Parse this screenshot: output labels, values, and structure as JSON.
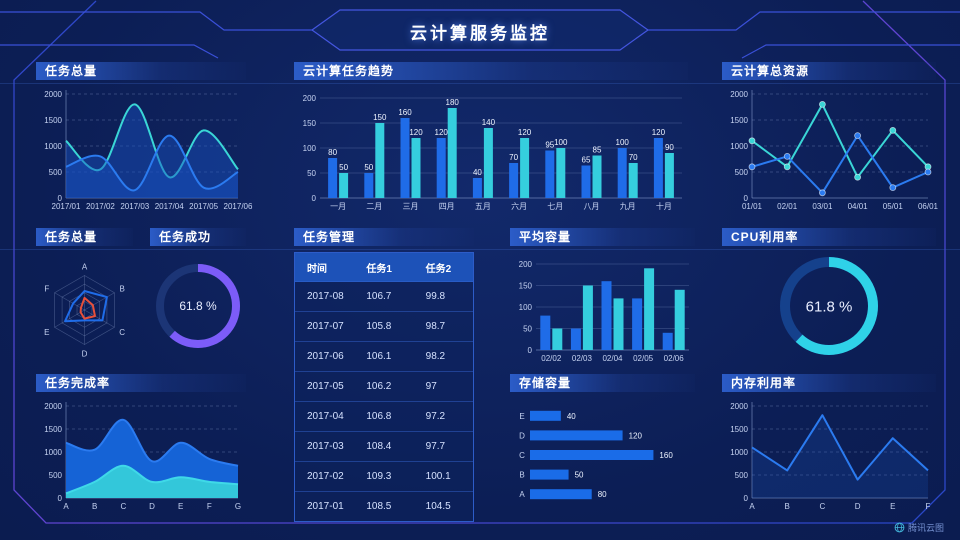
{
  "header": {
    "title": "云计算服务监控"
  },
  "watermark": {
    "label": "腾讯云图",
    "icon": "globe-icon"
  },
  "colors": {
    "blue": "#1f6ce8",
    "cyan": "#35cede",
    "purple": "#7c5cf8",
    "red": "#e8503a",
    "background": "#0c1e55"
  },
  "panels": {
    "task_total": {
      "title": "任务总量"
    },
    "task_trend": {
      "title": "云计算任务趋势"
    },
    "cloud_resources": {
      "title": "云计算总资源"
    },
    "task_radar": {
      "title": "任务总量"
    },
    "task_success": {
      "title": "任务成功"
    },
    "task_table": {
      "title": "任务管理",
      "headers": [
        "时间",
        "任务1",
        "任务2"
      ],
      "rows": [
        [
          "2017-08",
          "106.7",
          "99.8"
        ],
        [
          "2017-07",
          "105.8",
          "98.7"
        ],
        [
          "2017-06",
          "106.1",
          "98.2"
        ],
        [
          "2017-05",
          "106.2",
          "97"
        ],
        [
          "2017-04",
          "106.8",
          "97.2"
        ],
        [
          "2017-03",
          "108.4",
          "97.7"
        ],
        [
          "2017-02",
          "109.3",
          "100.1"
        ],
        [
          "2017-01",
          "108.5",
          "104.5"
        ]
      ]
    },
    "avg_capacity": {
      "title": "平均容量"
    },
    "cpu": {
      "title": "CPU利用率"
    },
    "completion": {
      "title": "任务完成率"
    },
    "storage": {
      "title": "存储容量"
    },
    "memory": {
      "title": "内存利用率"
    }
  },
  "chart_data": [
    {
      "panel": "chart-task-total",
      "type": "area",
      "title": "任务总量",
      "x": [
        "2017/01",
        "2017/02",
        "2017/03",
        "2017/04",
        "2017/05",
        "2017/06"
      ],
      "ylim": [
        0,
        2000
      ],
      "yticks": [
        0,
        500,
        1000,
        1500,
        2000
      ],
      "grid": "dashed",
      "markers": false,
      "series": [
        {
          "name": "series-cyan",
          "color": "#3ad6d6",
          "smooth": true,
          "area": "rgba(24,82,196,0.45)",
          "values": [
            1100,
            550,
            1800,
            400,
            1300,
            550
          ]
        },
        {
          "name": "series-blue",
          "color": "#2b7bf0",
          "smooth": true,
          "area": "rgba(24,82,196,0.45)",
          "values": [
            600,
            800,
            150,
            1200,
            200,
            500
          ]
        }
      ]
    },
    {
      "panel": "chart-task-trend",
      "type": "bar",
      "title": "云计算任务趋势",
      "categories": [
        "一月",
        "二月",
        "三月",
        "四月",
        "五月",
        "六月",
        "七月",
        "八月",
        "九月",
        "十月"
      ],
      "ylim": [
        0,
        200
      ],
      "yticks": [
        0,
        50,
        100,
        150,
        200
      ],
      "value_labels": true,
      "barw": 9,
      "series": [
        {
          "name": "series-blue",
          "color": "#1f6ce8",
          "values": [
            80,
            50,
            160,
            120,
            40,
            70,
            95,
            65,
            100,
            120
          ]
        },
        {
          "name": "series-cyan",
          "color": "#35cede",
          "values": [
            50,
            150,
            120,
            180,
            140,
            120,
            100,
            85,
            70,
            90
          ]
        }
      ]
    },
    {
      "panel": "chart-cloud-res",
      "type": "line",
      "title": "云计算总资源",
      "x": [
        "01/01",
        "02/01",
        "03/01",
        "04/01",
        "05/01",
        "06/01"
      ],
      "ylim": [
        0,
        2000
      ],
      "yticks": [
        0,
        500,
        1000,
        1500,
        2000
      ],
      "grid": "dashed",
      "markers": true,
      "series": [
        {
          "name": "series-cyan",
          "color": "#3ad6d6",
          "smooth": false,
          "values": [
            1100,
            600,
            1800,
            400,
            1300,
            600
          ]
        },
        {
          "name": "series-blue",
          "color": "#2b7bf0",
          "smooth": false,
          "values": [
            600,
            800,
            100,
            1200,
            200,
            500
          ]
        }
      ]
    },
    {
      "panel": "chart-radar",
      "type": "radar",
      "title": "任务总量",
      "axes": [
        "A",
        "B",
        "C",
        "D",
        "E",
        "F"
      ],
      "max": 100,
      "series": [
        {
          "name": "series-blue",
          "color": "#1f6ce8",
          "values": [
            55,
            75,
            60,
            30,
            65,
            38
          ]
        },
        {
          "name": "series-red",
          "color": "#e8503a",
          "values": [
            35,
            28,
            35,
            25,
            13,
            12
          ]
        }
      ]
    },
    {
      "panel": "chart-success",
      "type": "donut",
      "title": "任务成功",
      "value": 61.8,
      "label": "61.8 %",
      "color": "#7c5cf8",
      "track": "#1c3576",
      "font": 12,
      "stroke": 8
    },
    {
      "panel": "chart-avg",
      "type": "bar",
      "title": "平均容量",
      "categories": [
        "02/02",
        "02/03",
        "02/04",
        "02/05",
        "02/06"
      ],
      "ylim": [
        0,
        200
      ],
      "yticks": [
        0,
        50,
        100,
        150,
        200
      ],
      "value_labels": false,
      "barw": 10,
      "series": [
        {
          "name": "series-blue",
          "color": "#1f6ce8",
          "values": [
            80,
            50,
            160,
            120,
            40
          ]
        },
        {
          "name": "series-cyan",
          "color": "#35cede",
          "values": [
            50,
            150,
            120,
            190,
            140
          ]
        }
      ]
    },
    {
      "panel": "chart-cpu",
      "type": "donut",
      "title": "CPU利用率",
      "value": 61.8,
      "label": "61.8 %",
      "color": "#2fd2e8",
      "track": "#15418c",
      "font": 15,
      "stroke": 10
    },
    {
      "panel": "chart-completion",
      "type": "area",
      "title": "任务完成率",
      "x": [
        "A",
        "B",
        "C",
        "D",
        "E",
        "F",
        "G"
      ],
      "ylim": [
        0,
        2000
      ],
      "yticks": [
        0,
        500,
        1000,
        1500,
        2000
      ],
      "grid": "dashed",
      "markers": false,
      "series": [
        {
          "name": "series-blue",
          "color": "#2b7bf0",
          "smooth": true,
          "area": "#1563d6",
          "values": [
            1200,
            1050,
            1700,
            800,
            1200,
            850,
            700
          ]
        },
        {
          "name": "series-cyan",
          "color": "#3fd9e8",
          "smooth": true,
          "area": "#33c7da",
          "values": [
            100,
            350,
            700,
            350,
            450,
            350,
            300
          ]
        }
      ]
    },
    {
      "panel": "chart-storage",
      "type": "hbar",
      "title": "存储容量",
      "categories": [
        "E",
        "D",
        "C",
        "B",
        "A"
      ],
      "values": [
        40,
        120,
        160,
        50,
        80
      ],
      "xmax": 175,
      "color": "#1a6ce8"
    },
    {
      "panel": "chart-memory",
      "type": "line",
      "title": "内存利用率",
      "x": [
        "A",
        "B",
        "C",
        "D",
        "E",
        "F"
      ],
      "ylim": [
        0,
        2000
      ],
      "yticks": [
        0,
        500,
        1000,
        1500,
        2000
      ],
      "grid": "dashed",
      "markers": false,
      "series": [
        {
          "name": "series-blue",
          "color": "#2b7bf0",
          "smooth": false,
          "area": "rgba(30,90,200,0.2)",
          "values": [
            1100,
            600,
            1800,
            400,
            1300,
            600
          ]
        }
      ]
    }
  ]
}
